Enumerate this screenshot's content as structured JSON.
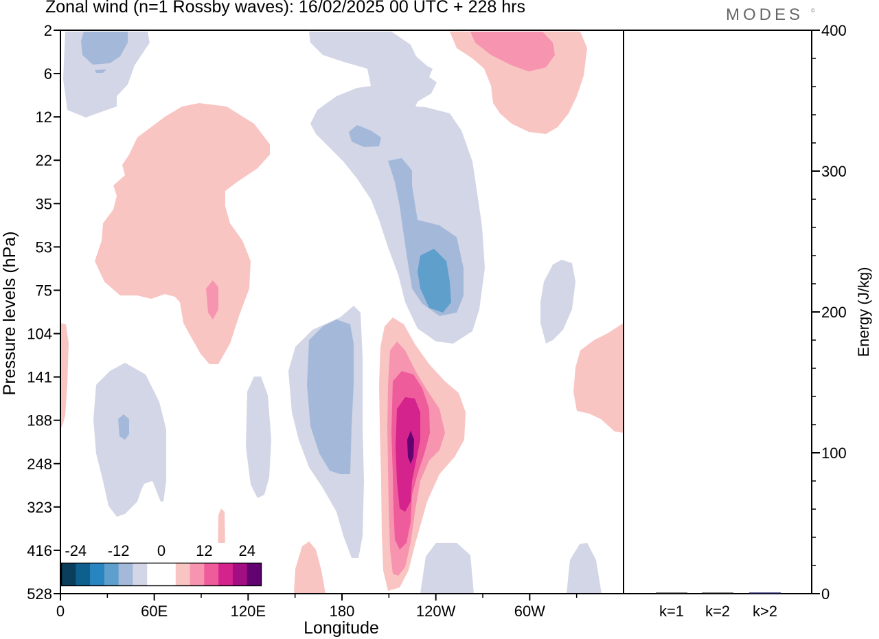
{
  "header": {
    "title": "Zonal wind (n=1 Rossby waves):  16/02/2025  00 UTC  + 228 hrs",
    "brand": "MODES",
    "brand_mark": "©"
  },
  "chart_data": [
    {
      "type": "contour",
      "xlabel": "Longitude",
      "ylabel": "Pressure levels (hPa)",
      "x_ticks": [
        "0",
        "60E",
        "120E",
        "180",
        "120W",
        "60W"
      ],
      "x_tick_degrees": [
        0,
        60,
        120,
        180,
        240,
        300
      ],
      "x_range": [
        0,
        360
      ],
      "y_ticks": [
        "2",
        "6",
        "12",
        "22",
        "35",
        "53",
        "75",
        "104",
        "141",
        "188",
        "248",
        "323",
        "416",
        "528"
      ],
      "colorbar": {
        "labels": [
          "-24",
          "-12",
          "0",
          "12",
          "24"
        ],
        "colors": [
          "#0b3d5c",
          "#0d5f8e",
          "#2985c0",
          "#5f9fcb",
          "#a4b9da",
          "#d3d6e6",
          "#ffffff",
          "#ffffff",
          "#f9c5c2",
          "#f794b0",
          "#ef5c9b",
          "#d4238c",
          "#a30e82",
          "#620371"
        ]
      },
      "fields": [
        {
          "color": "#d3d6e6",
          "sign": "negative",
          "label": "upper left"
        },
        {
          "color": "#d3d6e6",
          "sign": "negative",
          "label": "dateline band"
        },
        {
          "color": "#a4b9da",
          "sign": "negative",
          "label": "east pacific"
        },
        {
          "color": "#5f9fcb",
          "sign": "negative",
          "label": "east pacific core"
        },
        {
          "color": "#f9c5c2",
          "sign": "positive",
          "label": "stratosphere 60E"
        },
        {
          "color": "#f9c5c2",
          "sign": "positive",
          "label": "upper 120W"
        },
        {
          "color": "#f794b0",
          "sign": "positive",
          "label": "upper 120W core"
        },
        {
          "color": "#f9c5c2",
          "sign": "positive",
          "label": "troposphere 130W"
        },
        {
          "color": "#f794b0",
          "sign": "positive",
          "label": "troposphere 130W"
        },
        {
          "color": "#ef5c9b",
          "sign": "positive",
          "label": "troposphere 130W"
        },
        {
          "color": "#d4238c",
          "sign": "positive",
          "label": "troposphere 130W"
        },
        {
          "color": "#620371",
          "sign": "positive",
          "label": "troposphere 130W peak"
        }
      ]
    },
    {
      "type": "bar",
      "categories": [
        "k=1",
        "k=2",
        "k>2"
      ],
      "values": [
        0.5,
        0.3,
        0.8
      ],
      "ylabel": "Energy (J/kg)",
      "ylim": [
        0,
        400
      ],
      "y_ticks": [
        "0",
        "100",
        "200",
        "300",
        "400"
      ],
      "colors": [
        "#111111",
        "#111111",
        "#1a1a5a"
      ]
    }
  ]
}
